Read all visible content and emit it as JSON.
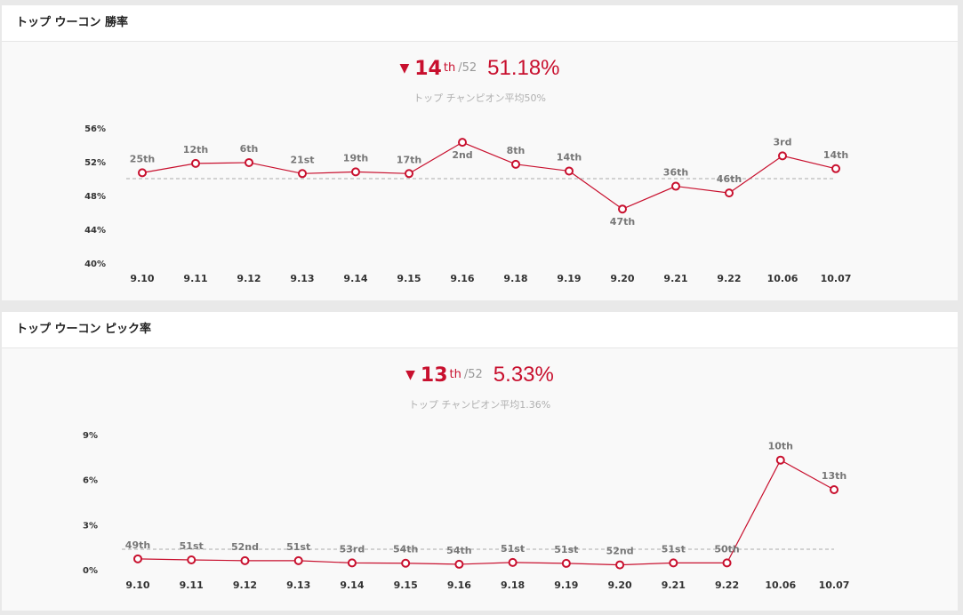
{
  "panels": [
    {
      "title": "トップ ウーコン 勝率",
      "summary": {
        "arrow": "▼",
        "rank": "14",
        "suffix": "th",
        "total": "/52",
        "value": "51.18%",
        "note": "トップ チャンピオン平均50%"
      }
    },
    {
      "title": "トップ ウーコン ピック率",
      "summary": {
        "arrow": "▼",
        "rank": "13",
        "suffix": "th",
        "total": "/52",
        "value": "5.33%",
        "note": "トップ チャンピオン平均1.36%"
      }
    }
  ],
  "colors": {
    "line": "#c8102e",
    "point_fill": "#ffffff",
    "avg_line": "#aaaaaa"
  },
  "chart_data": [
    {
      "type": "line",
      "title": "トップ ウーコン 勝率",
      "categories": [
        "9.10",
        "9.11",
        "9.12",
        "9.13",
        "9.14",
        "9.15",
        "9.16",
        "9.18",
        "9.19",
        "9.20",
        "9.21",
        "9.22",
        "10.06",
        "10.07"
      ],
      "values": [
        50.7,
        51.8,
        51.9,
        50.6,
        50.8,
        50.6,
        54.3,
        51.7,
        50.9,
        46.4,
        49.1,
        48.3,
        52.7,
        51.18
      ],
      "point_labels": [
        "25th",
        "12th",
        "6th",
        "21st",
        "19th",
        "17th",
        "2nd",
        "8th",
        "14th",
        "47th",
        "36th",
        "46th",
        "3rd",
        "14th"
      ],
      "label_below": [
        false,
        false,
        false,
        false,
        false,
        false,
        true,
        false,
        false,
        true,
        false,
        false,
        false,
        false
      ],
      "average": 50,
      "yticks": [
        56,
        52,
        48,
        44,
        40
      ],
      "ytick_labels": [
        "56%",
        "52%",
        "48%",
        "44%",
        "40%"
      ],
      "ylim": [
        40,
        56
      ],
      "grid": false,
      "legend": "none"
    },
    {
      "type": "line",
      "title": "トップ ウーコン ピック率",
      "categories": [
        "9.10",
        "9.11",
        "9.12",
        "9.13",
        "9.14",
        "9.15",
        "9.16",
        "9.18",
        "9.19",
        "9.20",
        "9.21",
        "9.22",
        "10.06",
        "10.07"
      ],
      "values": [
        0.72,
        0.65,
        0.6,
        0.6,
        0.45,
        0.43,
        0.36,
        0.48,
        0.42,
        0.32,
        0.45,
        0.45,
        7.3,
        5.33
      ],
      "point_labels": [
        "49th",
        "51st",
        "52nd",
        "51st",
        "53rd",
        "54th",
        "54th",
        "51st",
        "51st",
        "52nd",
        "51st",
        "50th",
        "10th",
        "13th"
      ],
      "label_below": [
        false,
        false,
        false,
        false,
        false,
        false,
        false,
        false,
        false,
        false,
        false,
        false,
        false,
        false
      ],
      "average": 1.36,
      "yticks": [
        9,
        6,
        3,
        0
      ],
      "ytick_labels": [
        "9%",
        "6%",
        "3%",
        "0%"
      ],
      "ylim": [
        0,
        9
      ],
      "grid": false,
      "legend": "none"
    }
  ]
}
